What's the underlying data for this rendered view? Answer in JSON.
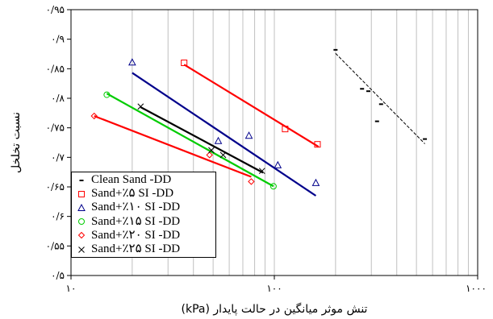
{
  "chart_data": {
    "type": "scatter",
    "x_scale": "log",
    "xlim": [
      10,
      1000
    ],
    "ylim": [
      0.5,
      0.95
    ],
    "x_ticks": [
      "۱۰",
      "۱۰۰",
      "۱۰۰۰"
    ],
    "y_ticks": [
      "۰/۵",
      "۰/۵۵",
      "۰/۶",
      "۰/۶۵",
      "۰/۷",
      "۰/۷۵",
      "۰/۸",
      "۰/۸۵",
      "۰/۹",
      "۰/۹۵"
    ],
    "xlabel": "تنش موثر میانگین در حالت پایدار (kPa)",
    "ylabel": "نسبت تخلخل",
    "grid": "vertical",
    "legend_position": "bottom-left",
    "series": [
      {
        "name": "Clean Sand -DD",
        "marker": "dash",
        "color": "#000000",
        "points": [
          [
            200,
            0.882
          ],
          [
            270,
            0.816
          ],
          [
            290,
            0.812
          ],
          [
            320,
            0.761
          ],
          [
            335,
            0.79
          ],
          [
            550,
            0.731
          ]
        ],
        "trend": [
          [
            200,
            0.876
          ],
          [
            550,
            0.723
          ]
        ],
        "trend_style": "dashed"
      },
      {
        "name": "Sand+٪۵ SI -DD",
        "marker": "square",
        "color": "#ff0000",
        "points": [
          [
            36,
            0.86
          ],
          [
            113,
            0.748
          ],
          [
            163,
            0.722
          ]
        ],
        "trend": [
          [
            36,
            0.857
          ],
          [
            165,
            0.718
          ]
        ],
        "trend_style": "solid"
      },
      {
        "name": "Sand+٪۱۰ SI -DD",
        "marker": "triangle",
        "color": "#00008b",
        "points": [
          [
            20,
            0.861
          ],
          [
            53,
            0.728
          ],
          [
            75,
            0.737
          ],
          [
            104,
            0.687
          ],
          [
            160,
            0.657
          ]
        ],
        "trend": [
          [
            20,
            0.843
          ],
          [
            160,
            0.635
          ]
        ],
        "trend_style": "solid"
      },
      {
        "name": "Sand+٪۱۵ SI -DD",
        "marker": "circle",
        "color": "#00cc00",
        "points": [
          [
            15,
            0.806
          ],
          [
            99,
            0.651
          ]
        ],
        "trend": [
          [
            15,
            0.808
          ],
          [
            99,
            0.651
          ]
        ],
        "trend_style": "solid"
      },
      {
        "name": "Sand+٪۲۰ SI -DD",
        "marker": "diamond",
        "color": "#ff0000",
        "points": [
          [
            13,
            0.77
          ],
          [
            48,
            0.704
          ],
          [
            77,
            0.659
          ]
        ],
        "trend": [
          [
            13,
            0.77
          ],
          [
            77,
            0.667
          ]
        ],
        "trend_style": "solid"
      },
      {
        "name": "Sand+٪۲۵ SI -DD",
        "marker": "x",
        "color": "#000000",
        "points": [
          [
            22,
            0.786
          ],
          [
            49,
            0.712
          ],
          [
            56,
            0.704
          ],
          [
            87,
            0.677
          ]
        ],
        "trend": [
          [
            22,
            0.785
          ],
          [
            88,
            0.674
          ]
        ],
        "trend_style": "solid"
      }
    ]
  }
}
